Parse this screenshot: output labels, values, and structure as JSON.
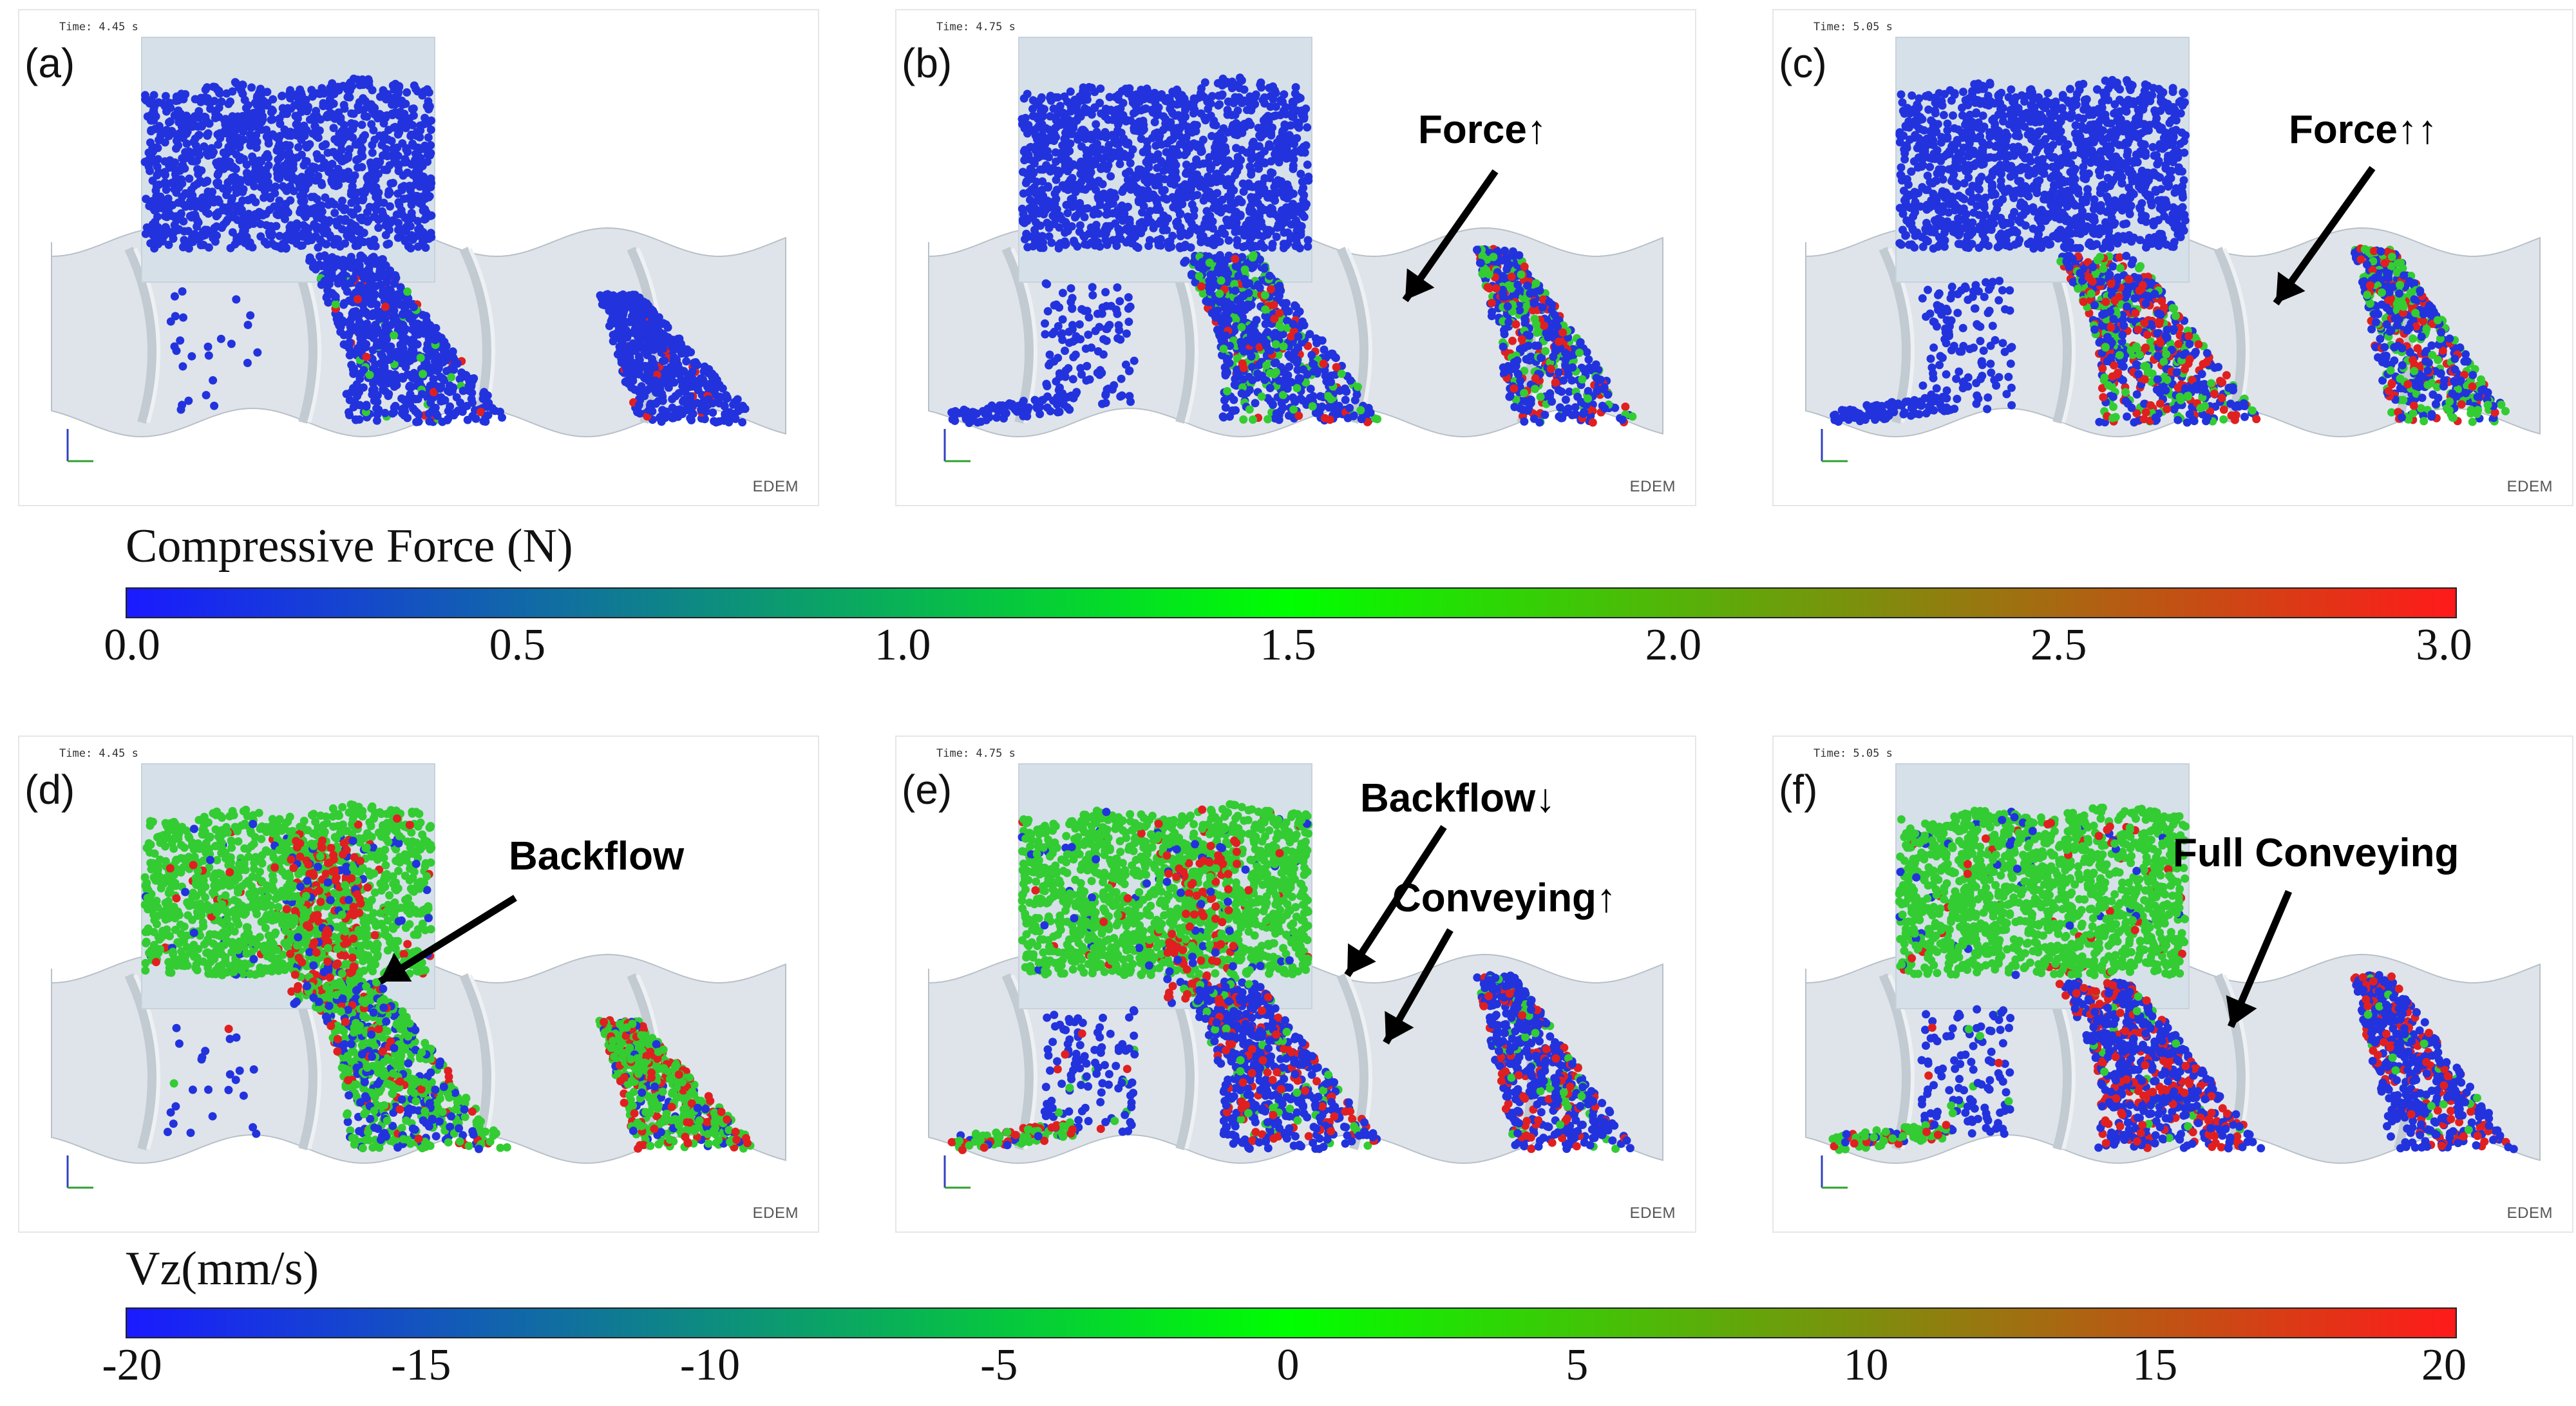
{
  "colors": {
    "particle_blue": "#2233dd",
    "particle_green": "#33cc33",
    "particle_red": "#e02020",
    "hopper": "#d6e0e8",
    "screw": "#dfe4ea",
    "arrow": "#000000"
  },
  "panels": [
    {
      "id": "a",
      "label": "(a)",
      "time": "Time: 4.45 s",
      "logo": "EDEM",
      "mode": "force",
      "stage": 0,
      "annotations": []
    },
    {
      "id": "b",
      "label": "(b)",
      "time": "Time: 4.75 s",
      "logo": "EDEM",
      "mode": "force",
      "stage": 1,
      "annotations": [
        "Force↑"
      ]
    },
    {
      "id": "c",
      "label": "(c)",
      "time": "Time: 5.05 s",
      "logo": "EDEM",
      "mode": "force",
      "stage": 2,
      "annotations": [
        "Force↑↑"
      ]
    },
    {
      "id": "d",
      "label": "(d)",
      "time": "Time: 4.45 s",
      "logo": "EDEM",
      "mode": "vz",
      "stage": 0,
      "annotations": [
        "Backflow"
      ]
    },
    {
      "id": "e",
      "label": "(e)",
      "time": "Time: 4.75 s",
      "logo": "EDEM",
      "mode": "vz",
      "stage": 1,
      "annotations": [
        "Backflow↓",
        "Conveying↑"
      ]
    },
    {
      "id": "f",
      "label": "(f)",
      "time": "Time: 5.05 s",
      "logo": "EDEM",
      "mode": "vz",
      "stage": 2,
      "annotations": [
        "Full Conveying"
      ]
    }
  ],
  "colorbars": [
    {
      "title": "Compressive Force (N)",
      "ticks": [
        "0.0",
        "0.5",
        "1.0",
        "1.5",
        "2.0",
        "2.5",
        "3.0"
      ],
      "min": 0.0,
      "max": 3.0,
      "gradient": [
        "#1a1aff",
        "#00ff00",
        "#ff1a1a"
      ]
    },
    {
      "title": "Vz(mm/s)",
      "ticks": [
        "-20",
        "-15",
        "-10",
        "-5",
        "0",
        "5",
        "10",
        "15",
        "20"
      ],
      "min": -20,
      "max": 20,
      "gradient": [
        "#1a1aff",
        "#00ff00",
        "#ff1a1a"
      ]
    }
  ]
}
